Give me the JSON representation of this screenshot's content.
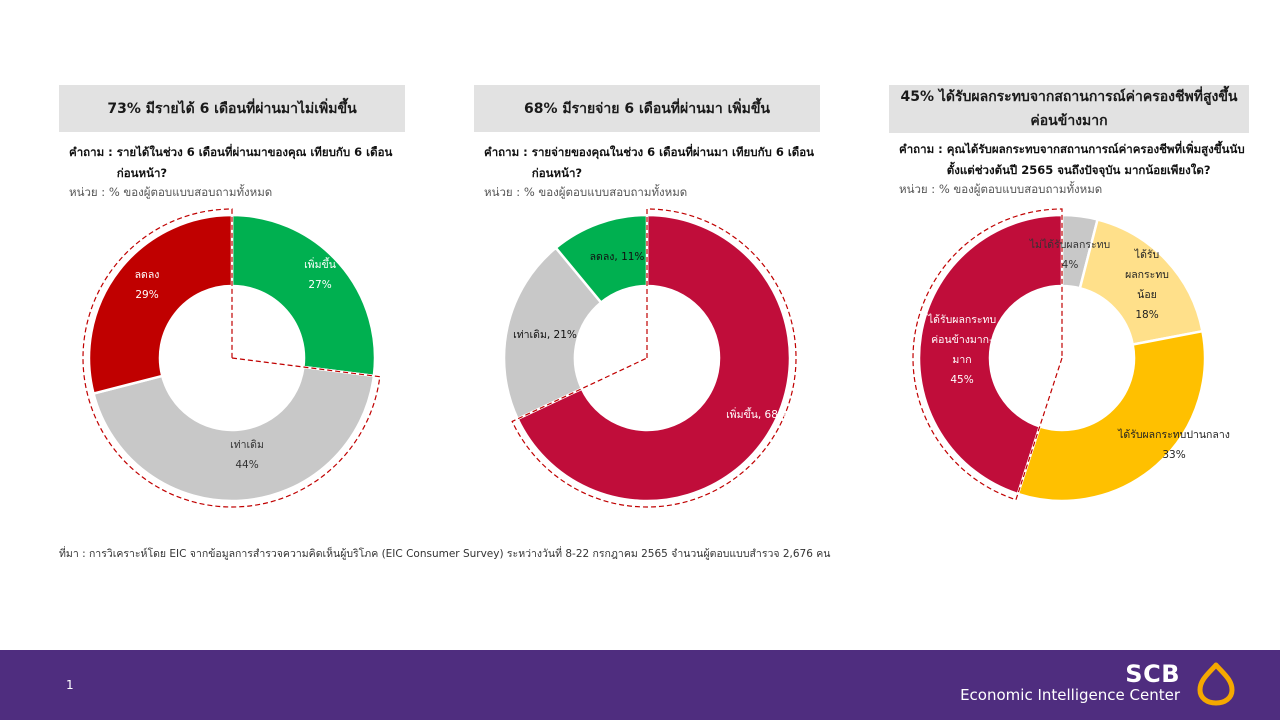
{
  "panels": [
    {
      "title": "73% มีรายได้ 6  เดือนที่ผ่านมาไม่เพิ่มขึ้น",
      "question_label": "คำถาม :",
      "question_text": "รายได้ในช่วง 6  เดือนที่ผ่านมาของคุณ เทียบกับ 6 เดือนก่อนหน้า?",
      "unit": "หน่วย : % ของผู้ตอบแบบสอบถามทั้งหมด"
    },
    {
      "title": "68% มีรายจ่าย 6  เดือนที่ผ่านมา  เพิ่มขึ้น",
      "question_label": "คำถาม :",
      "question_text": "รายจ่ายของคุณในช่วง 6 เดือนที่ผ่านมา เทียบกับ 6 เดือนก่อนหน้า?",
      "unit": "หน่วย : % ของผู้ตอบแบบสอบถามทั้งหมด"
    },
    {
      "title": "45% ได้รับผลกระทบจากสถานการณ์ค่าครองชีพที่สูงขึ้นค่อนข้างมาก",
      "question_label": "คำถาม :",
      "question_text": "คุณได้รับผลกระทบจากสถานการณ์ค่าครองชีพที่เพิ่มสูงขึ้นนับตั้งแต่ช่วงต้นปี 2565 จนถึงปัจจุบัน มากน้อยเพียงใด?",
      "unit": "หน่วย : % ของผู้ตอบแบบสอบถามทั้งหมด"
    }
  ],
  "chart_data": [
    {
      "type": "pie",
      "donut": true,
      "slices": [
        {
          "label": "เพิ่มขึ้น",
          "value": 27,
          "value_label": "27%",
          "color": "#00b050"
        },
        {
          "label": "เท่าเดิม",
          "value": 44,
          "value_label": "44%",
          "color": "#c8c8c8"
        },
        {
          "label": "ลดลง",
          "value": 29,
          "value_label": "29%",
          "color": "#c00000"
        }
      ],
      "highlight": [
        "เท่าเดิม",
        "ลดลง"
      ]
    },
    {
      "type": "pie",
      "donut": true,
      "slices": [
        {
          "label": "เพิ่มขึ้น",
          "value": 68,
          "value_label": "เพิ่มขึ้น, 68%",
          "color": "#c00d3a"
        },
        {
          "label": "เท่าเดิม",
          "value": 21,
          "value_label": "เท่าเดิม, 21%",
          "color": "#c8c8c8"
        },
        {
          "label": "ลดลง",
          "value": 11,
          "value_label": "ลดลง, 11%",
          "color": "#00b050"
        }
      ],
      "highlight": [
        "เพิ่มขึ้น"
      ]
    },
    {
      "type": "pie",
      "donut": true,
      "slices": [
        {
          "label": "ไม่ได้รับผลกระทบ",
          "value": 4,
          "value_label": "4%",
          "color": "#c8c8c8"
        },
        {
          "label": "ได้รับผลกระทบน้อย",
          "value": 18,
          "value_label": "18%",
          "color": "#ffe08a"
        },
        {
          "label": "ได้รับผลกระทบปานกลาง",
          "value": 33,
          "value_label": "33%",
          "color": "#ffc000"
        },
        {
          "label": "ได้รับผลกระทบค่อนข้างมาก-มาก",
          "value": 45,
          "value_label": "45%",
          "color": "#c00d3a"
        }
      ],
      "highlight": [
        "ได้รับผลกระทบค่อนข้างมาก-มาก"
      ]
    }
  ],
  "source": "ที่มา : การวิเคราะห์โดย EIC จากข้อมูลการสำรวจความคิดเห็นผู้บริโภค (EIC Consumer Survey) ระหว่างวันที่ 8-22 กรกฎาคม 2565 จำนวนผู้ตอบแบบสำรวจ 2,676 คน",
  "footer": {
    "page_number": "1",
    "brand": "SCB",
    "brand_sub": "Economic Intelligence Center"
  },
  "colors": {
    "footer_bg": "#4f2d7f",
    "logo_gold": "#f5a800",
    "highlight_outline": "#c00000"
  }
}
